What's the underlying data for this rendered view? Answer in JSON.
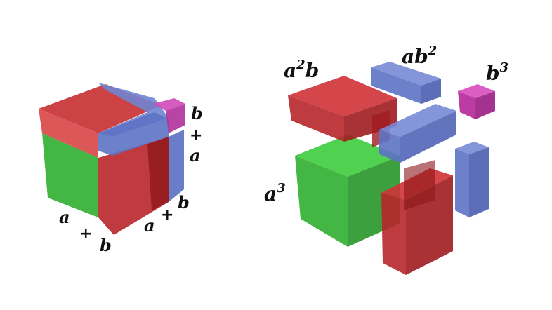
{
  "colors": {
    "a_cube": "#2fbf2f",
    "ab_slab": "#c42a2a",
    "abb_bar": "#5d72c4",
    "b_cube": "#c43aa8"
  },
  "left_cube": {
    "right_edge": {
      "b": "b",
      "plus": "+",
      "a": "a"
    },
    "front_right_edge": {
      "a": "a",
      "plus": "+",
      "b": "b"
    },
    "front_left_edge": {
      "a": "a",
      "plus": "+",
      "b": "b"
    }
  },
  "right_pieces": {
    "a2b": {
      "base": "a",
      "exp": "2",
      "tail": "b"
    },
    "ab2": {
      "base": "ab",
      "exp": "2"
    },
    "b3": {
      "base": "b",
      "exp": "3"
    },
    "a3": {
      "base": "a",
      "exp": "3"
    }
  }
}
